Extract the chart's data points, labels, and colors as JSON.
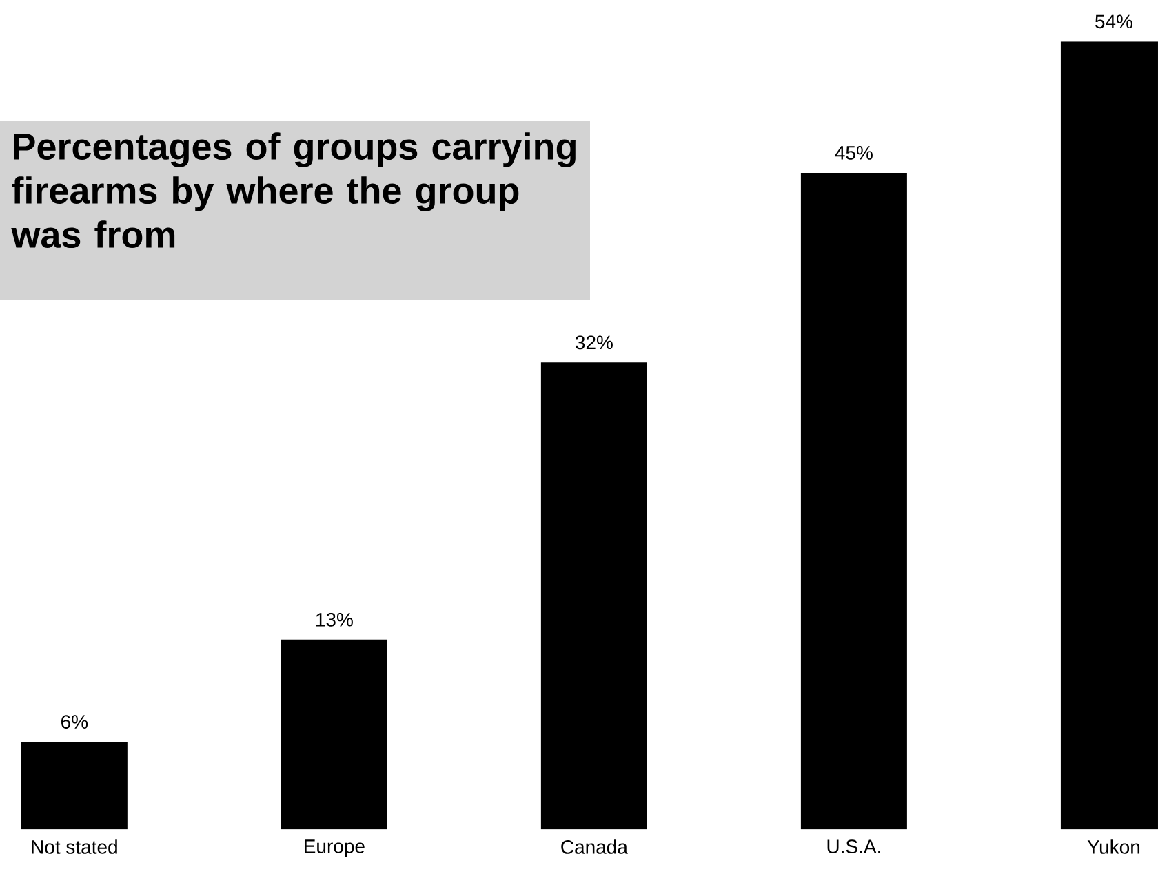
{
  "chart_data": {
    "type": "bar",
    "title": "Percentages of groups carrying firearms by where the group was from",
    "categories": [
      "Not stated",
      "Europe",
      "Canada",
      "U.S.A.",
      "Yukon"
    ],
    "values": [
      6,
      13,
      32,
      45,
      54
    ],
    "value_labels": [
      "6%",
      "13%",
      "32%",
      "45%",
      "54%"
    ],
    "color": "#000000"
  }
}
